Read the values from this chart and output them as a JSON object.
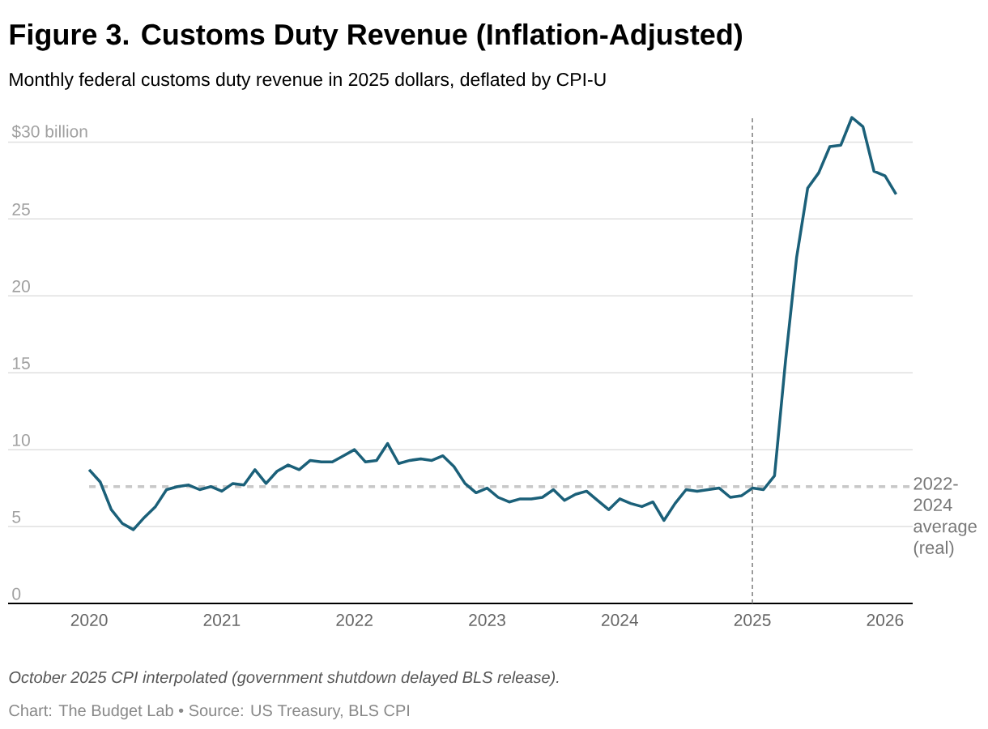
{
  "chart_data": {
    "type": "line",
    "title": "Figure 3. Customs Duty Revenue (Inflation-Adjusted)",
    "subtitle": "Monthly federal customs duty revenue in 2025 dollars, deflated by CPI-U",
    "x": [
      "2020-01",
      "2020-02",
      "2020-03",
      "2020-04",
      "2020-05",
      "2020-06",
      "2020-07",
      "2020-08",
      "2020-09",
      "2020-10",
      "2020-11",
      "2020-12",
      "2021-01",
      "2021-02",
      "2021-03",
      "2021-04",
      "2021-05",
      "2021-06",
      "2021-07",
      "2021-08",
      "2021-09",
      "2021-10",
      "2021-11",
      "2021-12",
      "2022-01",
      "2022-02",
      "2022-03",
      "2022-04",
      "2022-05",
      "2022-06",
      "2022-07",
      "2022-08",
      "2022-09",
      "2022-10",
      "2022-11",
      "2022-12",
      "2023-01",
      "2023-02",
      "2023-03",
      "2023-04",
      "2023-05",
      "2023-06",
      "2023-07",
      "2023-08",
      "2023-09",
      "2023-10",
      "2023-11",
      "2023-12",
      "2024-01",
      "2024-02",
      "2024-03",
      "2024-04",
      "2024-05",
      "2024-06",
      "2024-07",
      "2024-08",
      "2024-09",
      "2024-10",
      "2024-11",
      "2024-12",
      "2025-01",
      "2025-02",
      "2025-03",
      "2025-04",
      "2025-05",
      "2025-06",
      "2025-07",
      "2025-08",
      "2025-09",
      "2025-10",
      "2025-11",
      "2025-12",
      "2026-01",
      "2026-02"
    ],
    "series": [
      {
        "color": "#1b6079",
        "values": [
          8.7,
          7.9,
          6.1,
          5.2,
          4.8,
          5.6,
          6.3,
          7.4,
          7.6,
          7.7,
          7.4,
          7.6,
          7.3,
          7.8,
          7.7,
          8.7,
          7.8,
          8.6,
          9.0,
          8.7,
          9.3,
          9.2,
          9.2,
          9.6,
          10.0,
          9.2,
          9.3,
          10.4,
          9.1,
          9.3,
          9.4,
          9.3,
          9.6,
          8.9,
          7.8,
          7.2,
          7.5,
          6.9,
          6.6,
          6.8,
          6.8,
          6.9,
          7.4,
          6.7,
          7.1,
          7.3,
          6.7,
          6.1,
          6.8,
          6.5,
          6.3,
          6.6,
          5.4,
          6.5,
          7.4,
          7.3,
          7.4,
          7.5,
          6.9,
          7.0,
          7.5,
          7.4,
          8.3,
          15.8,
          22.5,
          27.0,
          28.0,
          29.7,
          29.8,
          31.6,
          31.0,
          28.1,
          27.8,
          26.6
        ]
      }
    ],
    "xlim": [
      "2019-05-21",
      "2026-03-16"
    ],
    "xticks": [
      {
        "value": "2020-01",
        "label": "2020"
      },
      {
        "value": "2021-01",
        "label": "2021"
      },
      {
        "value": "2022-01",
        "label": "2022"
      },
      {
        "value": "2023-01",
        "label": "2023"
      },
      {
        "value": "2024-01",
        "label": "2024"
      },
      {
        "value": "2025-01",
        "label": "2025"
      },
      {
        "value": "2026-01",
        "label": "2026"
      }
    ],
    "ylim": [
      0,
      31.6
    ],
    "yticks": [
      0,
      5,
      10,
      15,
      20,
      25,
      {
        "value": 30,
        "label": "$30 billion"
      }
    ],
    "grid": "y",
    "line_style": "solid",
    "ref_lines": [
      {
        "axis": "y",
        "value": 7.6,
        "label": "2022-2024 average (real)",
        "color": "#c8c8c8",
        "line_style": "dashed"
      },
      {
        "axis": "x",
        "value": "2025-01",
        "color": "#7f7f7f",
        "line_style": "dashed"
      }
    ],
    "annotations": [
      "October 2025 CPI interpolated (government shutdown delayed BLS release).",
      "Chart: The Budget Lab • Source: US Treasury, BLS CPI"
    ]
  }
}
